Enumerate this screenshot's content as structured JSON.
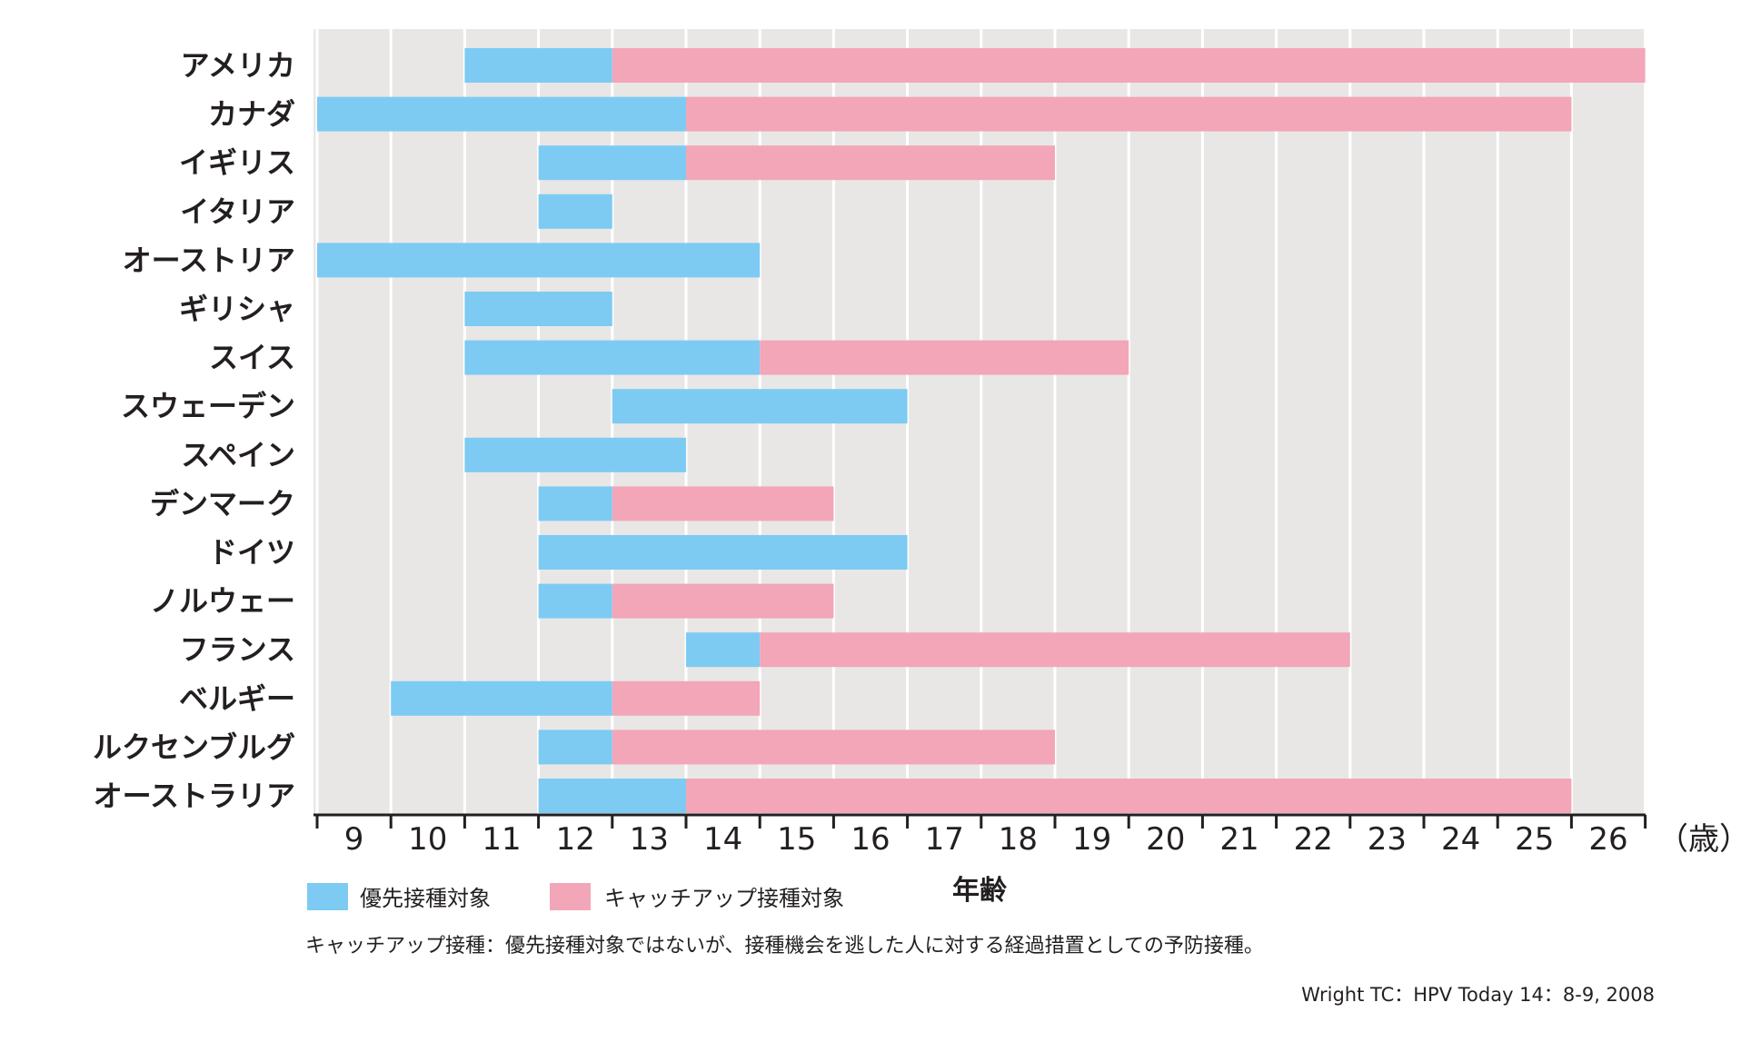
{
  "chart_data": {
    "type": "bar",
    "orientation": "horizontal",
    "subtype": "range-gantt",
    "xlabel": "年齢",
    "x_unit": "（歳）",
    "xlim": [
      9,
      27
    ],
    "x_ticks": [
      "9",
      "10",
      "11",
      "12",
      "13",
      "14",
      "15",
      "16",
      "17",
      "18",
      "19",
      "20",
      "21",
      "22",
      "23",
      "24",
      "25",
      "26"
    ],
    "grid": true,
    "legend": [
      {
        "name": "優先接種対象",
        "color": "#7dcbf3"
      },
      {
        "name": "キャッチアップ接種対象",
        "color": "#f2a6b8"
      }
    ],
    "categories": [
      "アメリカ",
      "カナダ",
      "イギリス",
      "イタリア",
      "オーストリア",
      "ギリシャ",
      "スイス",
      "スウェーデン",
      "スペイン",
      "デンマーク",
      "ドイツ",
      "ノルウェー",
      "フランス",
      "ベルギー",
      "ルクセンブルグ",
      "オーストラリア"
    ],
    "series": [
      {
        "name": "優先接種対象",
        "ranges": [
          [
            11,
            13
          ],
          [
            9,
            14
          ],
          [
            12,
            14
          ],
          [
            12,
            13
          ],
          [
            9,
            15
          ],
          [
            11,
            13
          ],
          [
            11,
            15
          ],
          [
            13,
            17
          ],
          [
            11,
            14
          ],
          [
            12,
            13
          ],
          [
            12,
            17
          ],
          [
            12,
            13
          ],
          [
            14,
            15
          ],
          [
            10,
            13
          ],
          [
            12,
            13
          ],
          [
            12,
            14
          ]
        ]
      },
      {
        "name": "キャッチアップ接種対象",
        "ranges": [
          [
            13,
            27
          ],
          [
            14,
            26
          ],
          [
            14,
            19
          ],
          null,
          null,
          null,
          [
            15,
            20
          ],
          null,
          null,
          [
            13,
            16
          ],
          null,
          [
            13,
            16
          ],
          [
            15,
            23
          ],
          [
            13,
            15
          ],
          [
            13,
            19
          ],
          [
            14,
            26
          ]
        ]
      }
    ],
    "note": "キャッチアップ接種：優先接種対象ではないが、接種機会を逃した人に対する経過措置としての予防接種。",
    "source": "Wright TC：HPV Today 14：8-9, 2008"
  }
}
